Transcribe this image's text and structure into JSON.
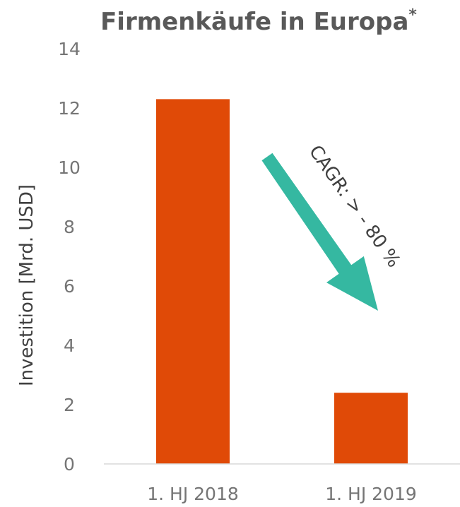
{
  "chart_data": {
    "type": "bar",
    "title": "Firmenkäufe in Europa",
    "title_superscript": "*",
    "ylabel": "Investition [Mrd. USD]",
    "xlabel": "",
    "categories": [
      "1. HJ 2018",
      "1. HJ 2019"
    ],
    "values": [
      12.3,
      2.4
    ],
    "ylim": [
      0,
      14
    ],
    "yticks": [
      0,
      2,
      4,
      6,
      8,
      10,
      12,
      14
    ],
    "grid": false,
    "legend": "none",
    "annotations": [
      {
        "text": "CAGR: > - 80 %",
        "style": "downward-arrow"
      }
    ],
    "colors": {
      "bar": "#e04a07",
      "arrow": "#35b8a1",
      "axis": "#d9d9d9",
      "text": "#595959"
    }
  }
}
